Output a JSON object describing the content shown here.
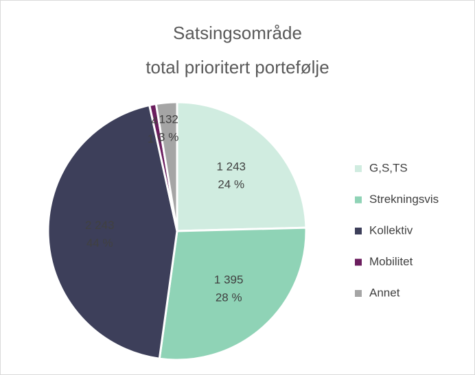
{
  "chart_data": {
    "type": "pie",
    "title": [
      "Satsingsområde",
      "total prioritert portefølje"
    ],
    "categories": [
      "G,S,TS",
      "Strekningsvis",
      "Kollektiv",
      "Mobilitet",
      "Annet"
    ],
    "values": [
      1243,
      1395,
      2243,
      42,
      132
    ],
    "value_labels": [
      "1 243",
      "1 395",
      "2 243",
      "42",
      "132"
    ],
    "percentages": [
      24,
      28,
      44,
      1,
      3
    ],
    "percentage_labels": [
      "24 %",
      "28 %",
      "44 %",
      "1 %",
      "3 %"
    ],
    "colors": [
      "#d0ece0",
      "#8fd3b6",
      "#3d3f5a",
      "#6b1d5e",
      "#a5a5a5"
    ],
    "legend": "right"
  }
}
